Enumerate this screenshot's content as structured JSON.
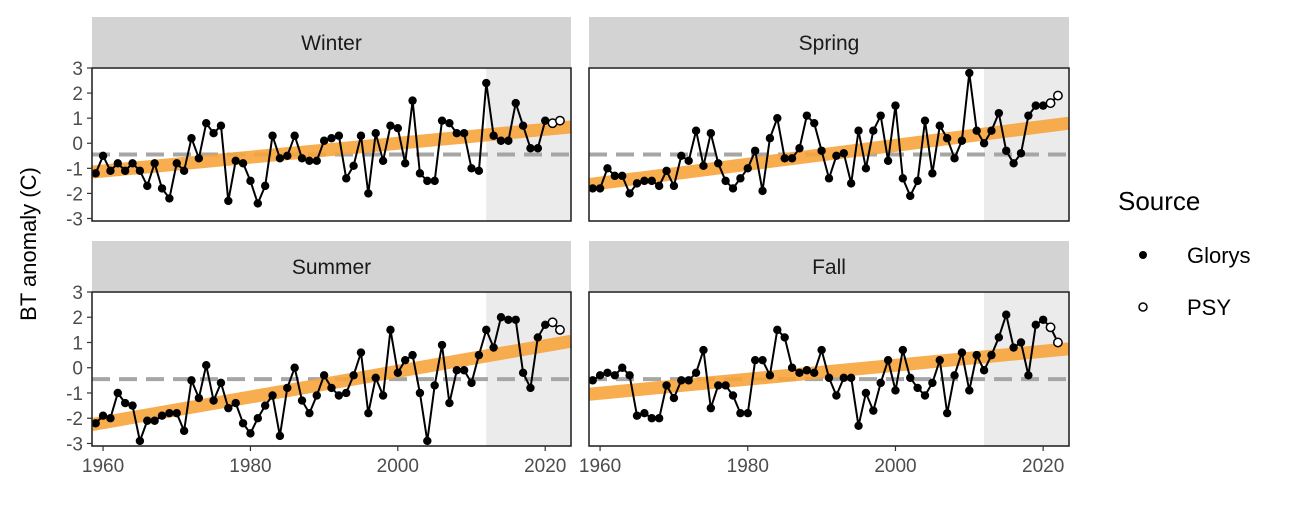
{
  "chart_data": {
    "type": "line",
    "ylabel": "BT anomaly (C)",
    "xlim": [
      1958.5,
      2023.5
    ],
    "ylim": [
      -3.1,
      3.0
    ],
    "x_ticks": [
      1960,
      1980,
      2000,
      2020
    ],
    "y_ticks": [
      -3,
      -2,
      -1,
      0,
      1,
      2,
      3
    ],
    "shaded_from": 2012,
    "reference_line": -0.45,
    "legend": {
      "title": "Source",
      "items": [
        {
          "label": "Glorys",
          "marker": "filled"
        },
        {
          "label": "PSY",
          "marker": "open"
        }
      ],
      "position": "right"
    },
    "colors": {
      "trend": "#f7a43c",
      "points": "#000000",
      "shade": "#ebebeb",
      "strip": "#d3d3d3",
      "reference": "#a6a6a6"
    },
    "panels": [
      {
        "title": "Winter",
        "trend": [
          -1.15,
          0.65
        ],
        "x": [
          1959,
          1960,
          1961,
          1962,
          1963,
          1964,
          1965,
          1966,
          1967,
          1968,
          1969,
          1970,
          1971,
          1972,
          1973,
          1974,
          1975,
          1976,
          1977,
          1978,
          1979,
          1980,
          1981,
          1982,
          1983,
          1984,
          1985,
          1986,
          1987,
          1988,
          1989,
          1990,
          1991,
          1992,
          1993,
          1994,
          1995,
          1996,
          1997,
          1998,
          1999,
          2000,
          2001,
          2002,
          2003,
          2004,
          2005,
          2006,
          2007,
          2008,
          2009,
          2010,
          2011,
          2012,
          2013,
          2014,
          2015,
          2016,
          2017,
          2018,
          2019,
          2020
        ],
        "glorys": [
          -1.2,
          -0.5,
          -1.1,
          -0.8,
          -1.1,
          -0.8,
          -1.1,
          -1.7,
          -0.8,
          -1.8,
          -2.2,
          -0.8,
          -1.1,
          0.2,
          -0.6,
          0.8,
          0.4,
          0.7,
          -2.3,
          -0.7,
          -0.8,
          -1.5,
          -2.4,
          -1.7,
          0.3,
          -0.6,
          -0.5,
          0.3,
          -0.6,
          -0.7,
          -0.7,
          0.1,
          0.2,
          0.3,
          -1.4,
          -0.9,
          0.3,
          -2.0,
          0.4,
          -0.7,
          0.7,
          0.6,
          -0.8,
          1.7,
          -1.2,
          -1.5,
          -1.5,
          0.9,
          0.8,
          0.4,
          0.4,
          -1.0,
          -1.1,
          2.4,
          0.3,
          0.1,
          0.1,
          1.6,
          0.7,
          -0.2,
          -0.2,
          0.9
        ],
        "psy_x": [
          2021,
          2022
        ],
        "psy": [
          0.8,
          0.9
        ]
      },
      {
        "title": "Spring",
        "trend": [
          -1.65,
          0.8
        ],
        "x": [
          1959,
          1960,
          1961,
          1962,
          1963,
          1964,
          1965,
          1966,
          1967,
          1968,
          1969,
          1970,
          1971,
          1972,
          1973,
          1974,
          1975,
          1976,
          1977,
          1978,
          1979,
          1980,
          1981,
          1982,
          1983,
          1984,
          1985,
          1986,
          1987,
          1988,
          1989,
          1990,
          1991,
          1992,
          1993,
          1994,
          1995,
          1996,
          1997,
          1998,
          1999,
          2000,
          2001,
          2002,
          2003,
          2004,
          2005,
          2006,
          2007,
          2008,
          2009,
          2010,
          2011,
          2012,
          2013,
          2014,
          2015,
          2016,
          2017,
          2018,
          2019,
          2020
        ],
        "glorys": [
          -1.8,
          -1.8,
          -1.0,
          -1.3,
          -1.3,
          -2.0,
          -1.6,
          -1.5,
          -1.5,
          -1.7,
          -1.1,
          -1.7,
          -0.5,
          -0.7,
          0.5,
          -0.9,
          0.4,
          -0.8,
          -1.5,
          -1.8,
          -1.4,
          -1.0,
          -0.3,
          -1.9,
          0.2,
          1.0,
          -0.6,
          -0.6,
          -0.2,
          1.1,
          0.8,
          -0.3,
          -1.4,
          -0.5,
          -0.4,
          -1.6,
          0.5,
          -1.0,
          0.5,
          1.1,
          -0.7,
          1.5,
          -1.4,
          -2.1,
          -1.5,
          0.9,
          -1.2,
          0.7,
          0.2,
          -0.6,
          0.1,
          2.8,
          0.5,
          0.0,
          0.5,
          1.2,
          -0.3,
          -0.8,
          -0.4,
          1.1,
          1.5,
          1.5
        ],
        "psy_x": [
          2021,
          2022
        ],
        "psy": [
          1.6,
          1.9
        ]
      },
      {
        "title": "Summer",
        "trend": [
          -2.25,
          1.05
        ],
        "x": [
          1959,
          1960,
          1961,
          1962,
          1963,
          1964,
          1965,
          1966,
          1967,
          1968,
          1969,
          1970,
          1971,
          1972,
          1973,
          1974,
          1975,
          1976,
          1977,
          1978,
          1979,
          1980,
          1981,
          1982,
          1983,
          1984,
          1985,
          1986,
          1987,
          1988,
          1989,
          1990,
          1991,
          1992,
          1993,
          1994,
          1995,
          1996,
          1997,
          1998,
          1999,
          2000,
          2001,
          2002,
          2003,
          2004,
          2005,
          2006,
          2007,
          2008,
          2009,
          2010,
          2011,
          2012,
          2013,
          2014,
          2015,
          2016,
          2017,
          2018,
          2019,
          2020
        ],
        "glorys": [
          -2.2,
          -1.9,
          -2.0,
          -1.0,
          -1.4,
          -1.5,
          -2.9,
          -2.1,
          -2.1,
          -1.9,
          -1.8,
          -1.8,
          -2.5,
          -0.5,
          -1.2,
          0.1,
          -1.3,
          -0.6,
          -1.6,
          -1.4,
          -2.2,
          -2.6,
          -2.0,
          -1.5,
          -1.1,
          -2.7,
          -0.8,
          0.0,
          -1.3,
          -1.8,
          -1.1,
          -0.3,
          -0.8,
          -1.1,
          -1.0,
          -0.3,
          0.6,
          -1.8,
          -0.4,
          -1.1,
          1.5,
          -0.2,
          0.3,
          0.5,
          -1.0,
          -2.9,
          -0.7,
          0.9,
          -1.4,
          -0.1,
          -0.1,
          -0.6,
          0.5,
          1.5,
          0.8,
          2.0,
          1.9,
          1.9,
          -0.2,
          -0.8,
          1.2,
          1.7
        ],
        "psy_x": [
          2021,
          2022
        ],
        "psy": [
          1.8,
          1.5
        ]
      },
      {
        "title": "Fall",
        "trend": [
          -1.05,
          0.75
        ],
        "x": [
          1959,
          1960,
          1961,
          1962,
          1963,
          1964,
          1965,
          1966,
          1967,
          1968,
          1969,
          1970,
          1971,
          1972,
          1973,
          1974,
          1975,
          1976,
          1977,
          1978,
          1979,
          1980,
          1981,
          1982,
          1983,
          1984,
          1985,
          1986,
          1987,
          1988,
          1989,
          1990,
          1991,
          1992,
          1993,
          1994,
          1995,
          1996,
          1997,
          1998,
          1999,
          2000,
          2001,
          2002,
          2003,
          2004,
          2005,
          2006,
          2007,
          2008,
          2009,
          2010,
          2011,
          2012,
          2013,
          2014,
          2015,
          2016,
          2017,
          2018,
          2019,
          2020
        ],
        "glorys": [
          -0.5,
          -0.3,
          -0.2,
          -0.3,
          0.0,
          -0.3,
          -1.9,
          -1.8,
          -2.0,
          -2.0,
          -0.7,
          -1.2,
          -0.5,
          -0.5,
          -0.2,
          0.7,
          -1.6,
          -0.7,
          -0.7,
          -1.1,
          -1.8,
          -1.8,
          0.3,
          0.3,
          -0.3,
          1.5,
          1.2,
          0.0,
          -0.2,
          -0.1,
          -0.2,
          0.7,
          -0.4,
          -1.1,
          -0.4,
          -0.4,
          -2.3,
          -1.0,
          -1.7,
          -0.6,
          0.3,
          -0.9,
          0.7,
          -0.4,
          -0.8,
          -1.1,
          -0.6,
          0.3,
          -1.8,
          -0.3,
          0.6,
          -0.9,
          0.5,
          -0.1,
          0.5,
          1.2,
          2.1,
          0.8,
          1.0,
          -0.3,
          1.7,
          1.9
        ],
        "psy_x": [
          2021,
          2022
        ],
        "psy": [
          1.6,
          1.0
        ]
      }
    ]
  }
}
